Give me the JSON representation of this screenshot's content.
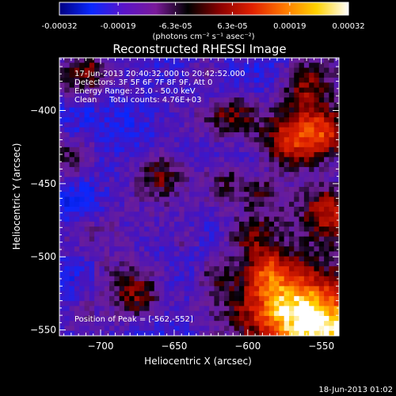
{
  "chart_data": {
    "type": "heatmap",
    "title": "Reconstructed RHESSI Image",
    "xlabel": "Heliocentric X (arcsec)",
    "ylabel": "Heliocentric Y (arcsec)",
    "x_ticks": [
      -700,
      -650,
      -600,
      -550
    ],
    "y_ticks": [
      -400,
      -450,
      -500,
      -550
    ],
    "xlim": [
      -728,
      -538
    ],
    "ylim": [
      -554,
      -364
    ],
    "colorbar": {
      "min": -0.00032,
      "max": 0.00032,
      "tick_labels": [
        "-0.00032",
        "-0.00019",
        "-6.3e-05",
        "6.3e-05",
        "0.00019",
        "0.00032"
      ],
      "unit_label": "(photons cm⁻² s⁻¹ asec⁻²)",
      "colormap": [
        "#000080",
        "#0a28ff",
        "#5a14c8",
        "#7a1a9a",
        "#000000",
        "#8b0000",
        "#e02000",
        "#ff7800",
        "#ffd200",
        "#ffffff"
      ]
    },
    "annotations": [
      "17-Jun-2013 20:40:32.000 to 20:42:52.000",
      "Detectors: 3F 5F 6F 7F 8F 9F, Att 0",
      "Energy Range: 25.0 - 50.0 keV",
      "Clean     Total counts: 4.76E+03"
    ],
    "peak_label": "Position of Peak = [-562,-552]",
    "peak": [
      -562,
      -552
    ],
    "footer": "18-Jun-2013 01:02"
  }
}
